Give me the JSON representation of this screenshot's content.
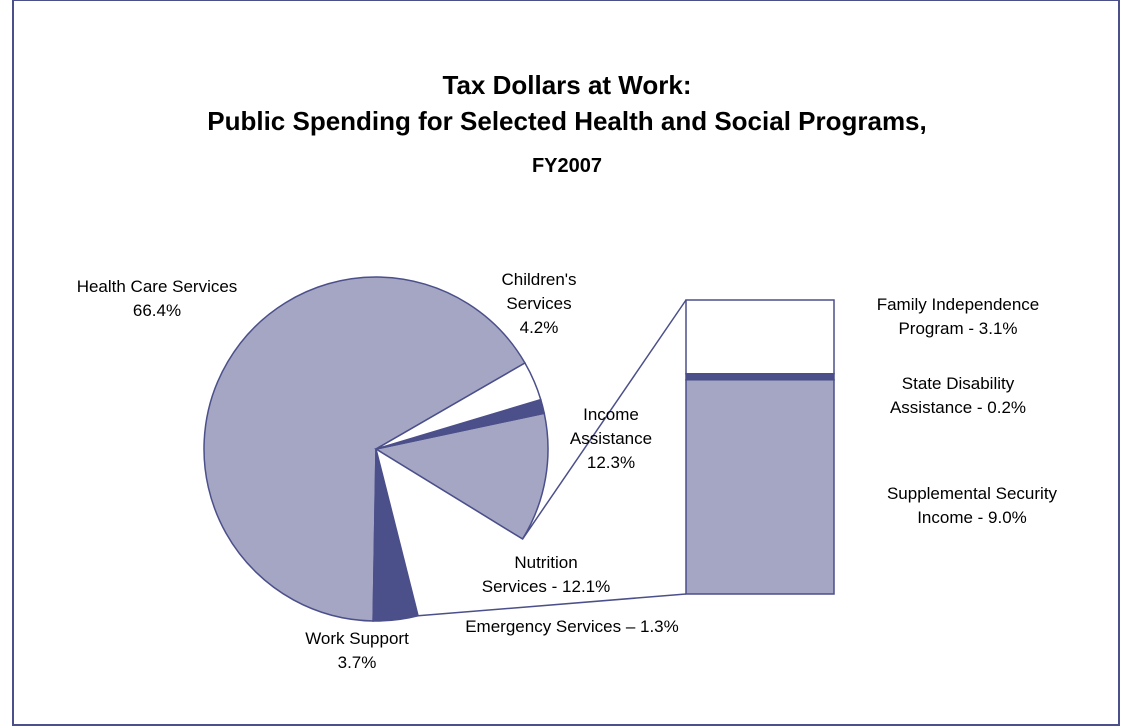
{
  "chart_data": {
    "type": "pie",
    "title": "Tax Dollars at Work:",
    "subtitle": "Public Spending for Selected Health and Social Programs,",
    "subtitle2": "FY2007",
    "slices": [
      {
        "label_lines": [
          "Health Care Services",
          "66.4%"
        ],
        "value": 66.4,
        "color": "#a5a6c4",
        "exploded": false
      },
      {
        "label_lines": [
          "Children's",
          "Services",
          "4.2%"
        ],
        "value": 4.2,
        "color": "#4b4f8a",
        "exploded": false
      },
      {
        "label_lines": [
          "Income",
          "Assistance",
          "12.3%"
        ],
        "value": 12.3,
        "color": "#ffffff",
        "exploded": true
      },
      {
        "label_lines": [
          "Nutrition",
          "Services - 12.1%"
        ],
        "value": 12.1,
        "color": "#a5a6c4",
        "exploded": false
      },
      {
        "label_lines": [
          "Emergency Services – 1.3%"
        ],
        "value": 1.3,
        "color": "#4b4f8a",
        "exploded": false
      },
      {
        "label_lines": [
          "Work Support",
          "3.7%"
        ],
        "value": 3.7,
        "color": "#ffffff",
        "exploded": false
      }
    ],
    "breakdown": {
      "of": "Income Assistance",
      "segments": [
        {
          "label_lines": [
            "Family Independence",
            "Program - 3.1%"
          ],
          "value": 3.1,
          "color": "#ffffff"
        },
        {
          "label_lines": [
            "State Disability",
            "Assistance - 0.2%"
          ],
          "value": 0.2,
          "color": "#4b4f8a"
        },
        {
          "label_lines": [
            "Supplemental Security",
            "Income - 9.0%"
          ],
          "value": 9.0,
          "color": "#a5a6c4"
        }
      ]
    },
    "colors": {
      "border": "#4b4f8a",
      "light": "#a5a6c4",
      "dark": "#4b4f8a"
    }
  }
}
